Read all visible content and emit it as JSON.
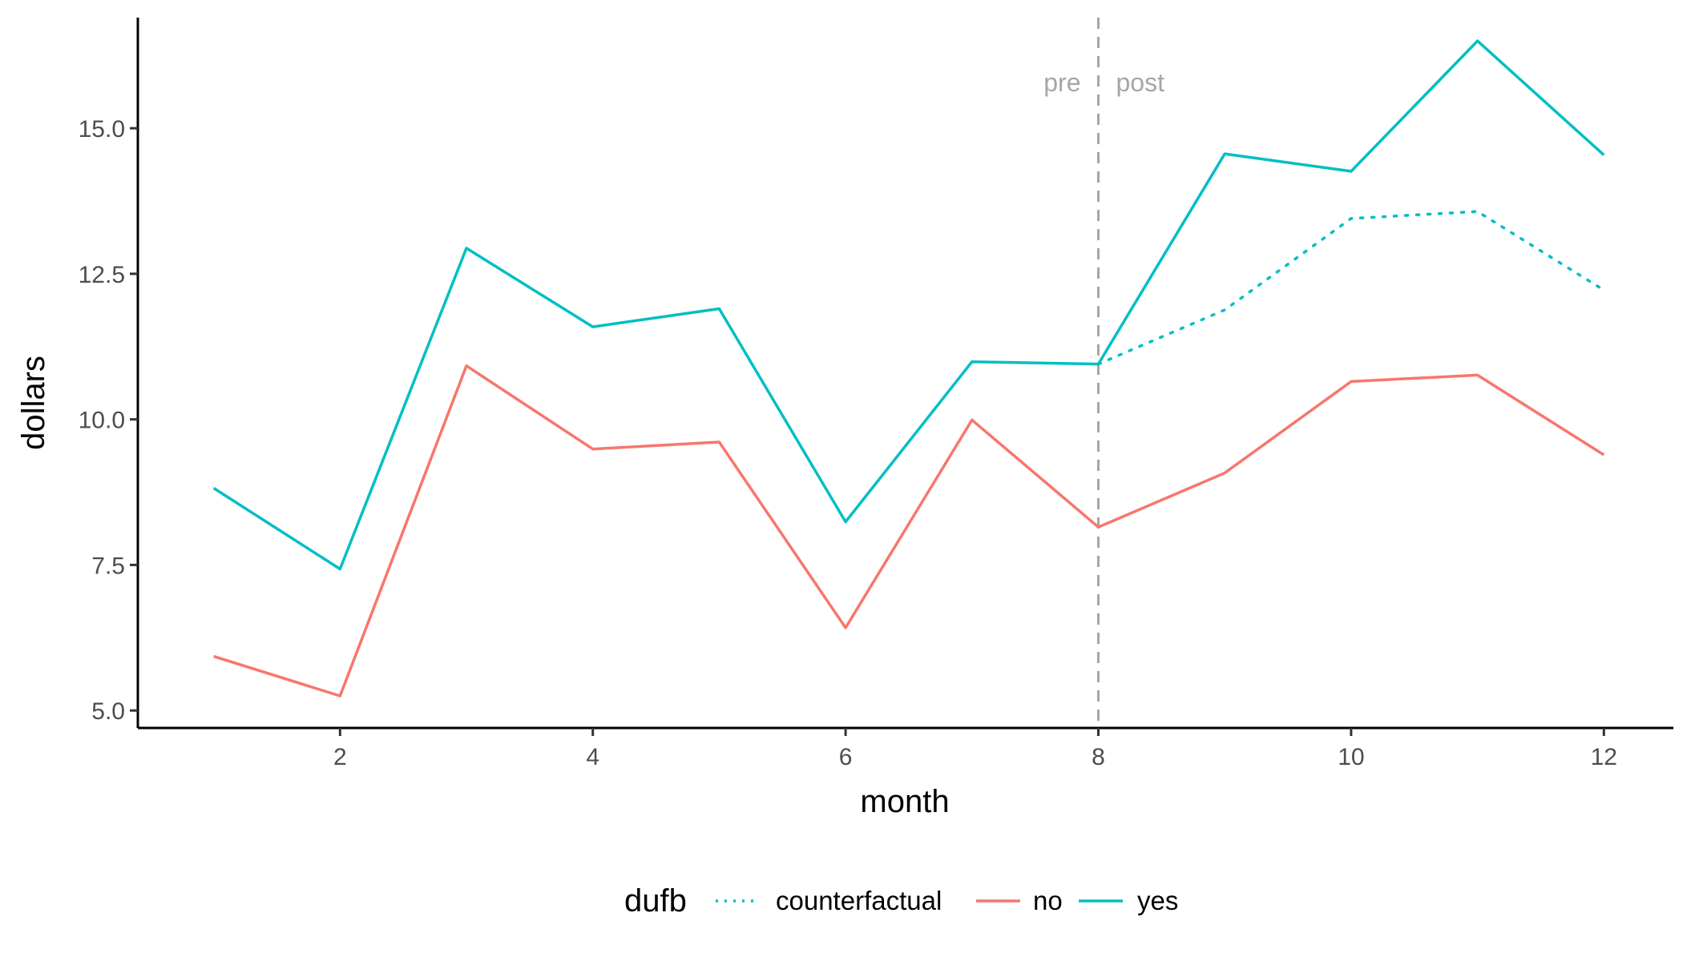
{
  "chart_data": {
    "type": "line",
    "title": "",
    "xlabel": "month",
    "ylabel": "dollars",
    "xlim": [
      0.4,
      12.55
    ],
    "ylim": [
      4.7,
      16.9
    ],
    "x_ticks": [
      2,
      4,
      6,
      8,
      10,
      12
    ],
    "x_tick_labels": [
      "2",
      "4",
      "6",
      "8",
      "10",
      "12"
    ],
    "y_ticks": [
      5.0,
      7.5,
      10.0,
      12.5,
      15.0
    ],
    "y_tick_labels": [
      "5.0",
      "7.5",
      "10.0",
      "12.5",
      "15.0"
    ],
    "grid": false,
    "legend": {
      "title": "dufb",
      "position": "bottom",
      "entries": [
        "counterfactual",
        "no",
        "yes"
      ]
    },
    "series": [
      {
        "name": "counterfactual",
        "color": "#00BFC4",
        "style": "dotted",
        "x": [
          8,
          9,
          10,
          11,
          12
        ],
        "y": [
          10.95,
          11.88,
          13.45,
          13.57,
          12.22
        ]
      },
      {
        "name": "no",
        "color": "#F8766D",
        "style": "solid",
        "x": [
          1,
          2,
          3,
          4,
          5,
          6,
          7,
          8,
          9,
          10,
          11,
          12
        ],
        "y": [
          5.93,
          5.25,
          10.92,
          9.49,
          9.61,
          6.42,
          9.99,
          8.15,
          9.08,
          10.65,
          10.76,
          9.39
        ]
      },
      {
        "name": "yes",
        "color": "#00BFC4",
        "style": "solid",
        "x": [
          1,
          2,
          3,
          4,
          5,
          6,
          7,
          8,
          9,
          10,
          11,
          12
        ],
        "y": [
          8.82,
          7.43,
          12.94,
          11.59,
          11.9,
          8.24,
          10.99,
          10.95,
          14.56,
          14.26,
          16.5,
          14.54
        ]
      }
    ],
    "annotations": [
      {
        "type": "vline",
        "x": 8,
        "style": "dashed",
        "color": "#a6a6a6"
      },
      {
        "type": "text",
        "text": "pre",
        "x": 8,
        "side": "left"
      },
      {
        "type": "text",
        "text": "post",
        "x": 8,
        "side": "right"
      }
    ]
  }
}
